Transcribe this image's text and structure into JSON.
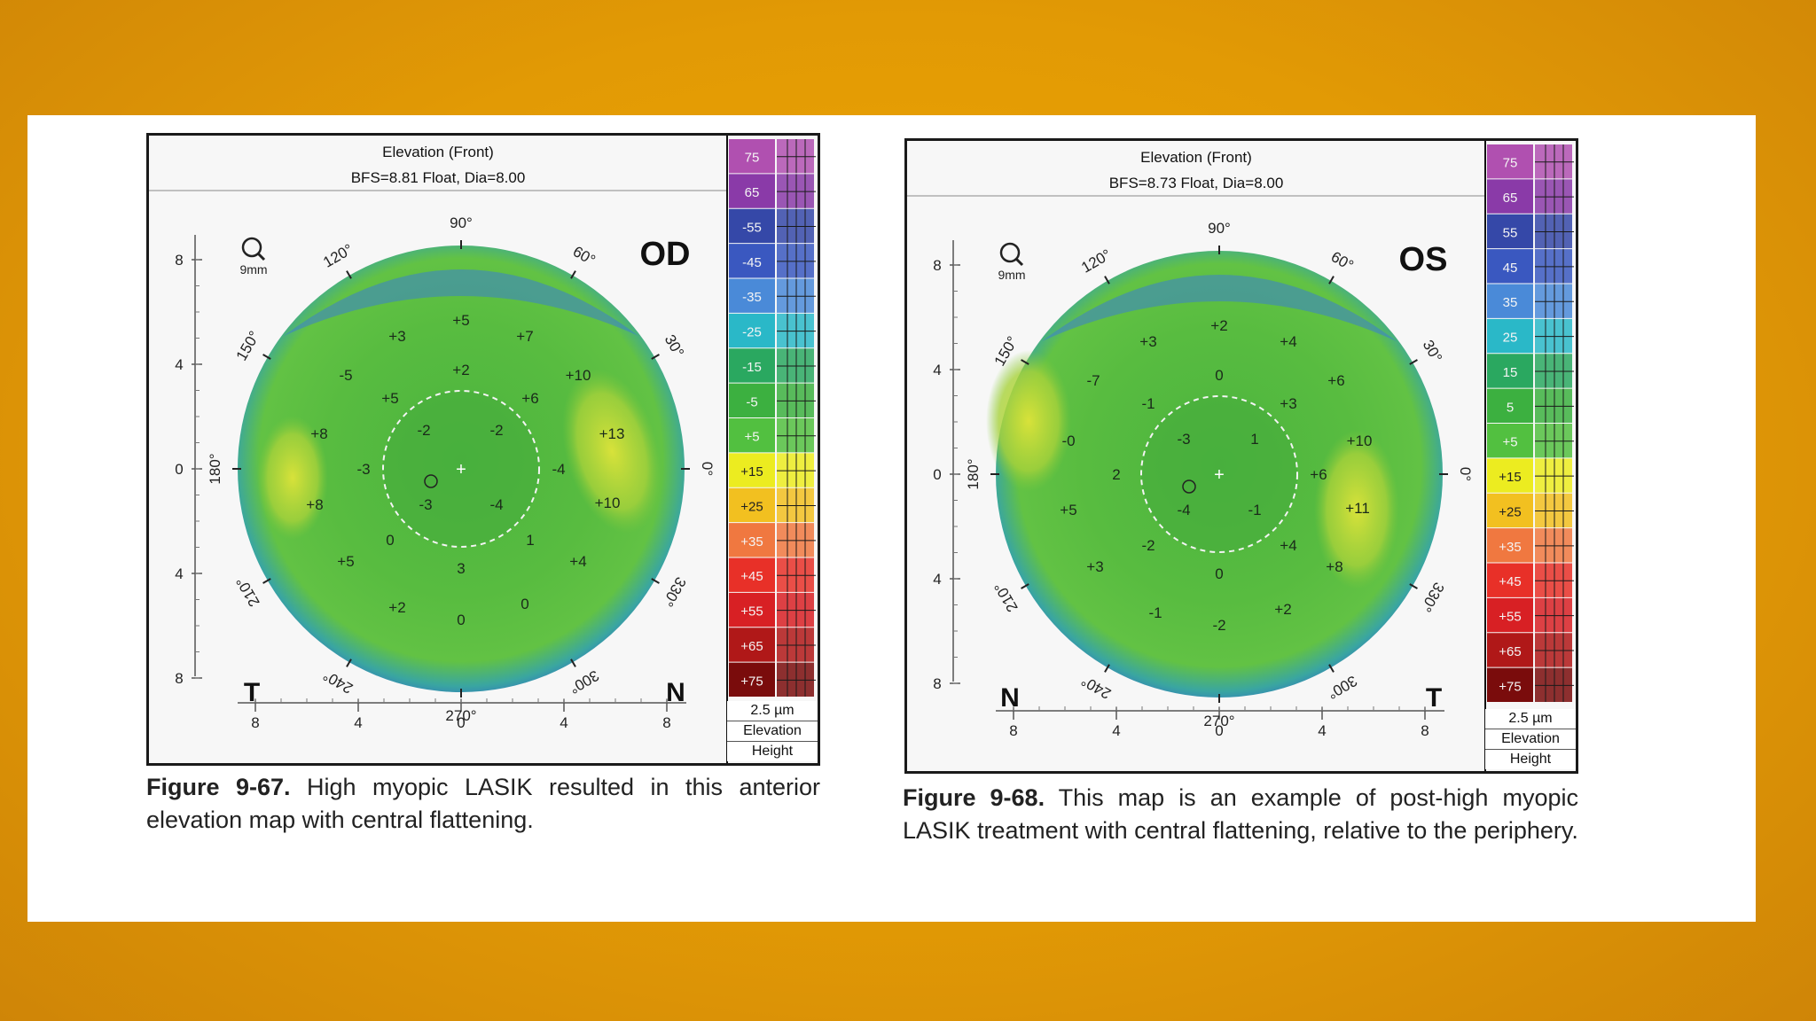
{
  "slide": {
    "background": "#e39c05",
    "panel": "#ffffff"
  },
  "figures": [
    {
      "map_title": "Elevation (Front)",
      "map_subtitle": "BFS=8.81 Float, Dia=8.00",
      "eye_label": "OD",
      "left_letter": "T",
      "right_letter": "N",
      "zoom_label": "9mm",
      "angles": [
        "90°",
        "120°",
        "60°",
        "150°",
        "30°",
        "180°",
        "0°",
        "210°",
        "330°",
        "240°",
        "300°",
        "270°"
      ],
      "y_axis_labels": [
        "8",
        "4",
        "0",
        "4",
        "8"
      ],
      "x_axis_labels": [
        "8",
        "4",
        "0",
        "4",
        "8"
      ],
      "scale_values": [
        "75",
        "65",
        "-55",
        "-45",
        "-35",
        "-25",
        "-15",
        "-5",
        "+5",
        "+15",
        "+25",
        "+35",
        "+45",
        "+55",
        "+65",
        "+75"
      ],
      "scale_units": "2.5 µm",
      "scale_footer_1": "Elevation",
      "scale_footer_2": "Height",
      "numbers": [
        "+3",
        "+5",
        "+7",
        "-5",
        "+2",
        "+10",
        "+5",
        "+6",
        "+8",
        "-2",
        "-2",
        "+13",
        "-3",
        "-4",
        "+8",
        "-3",
        "-4",
        "+10",
        "0",
        "1",
        "+5",
        "3",
        "+4",
        "+2",
        "0",
        "0"
      ],
      "caption_label": "Figure 9-67.",
      "caption_text": " High myopic LASIK resulted in this anterior elevation map with central flattening."
    },
    {
      "map_title": "Elevation (Front)",
      "map_subtitle": "BFS=8.73 Float, Dia=8.00",
      "eye_label": "OS",
      "left_letter": "N",
      "right_letter": "T",
      "zoom_label": "9mm",
      "angles": [
        "90°",
        "120°",
        "60°",
        "150°",
        "30°",
        "180°",
        "0°",
        "210°",
        "330°",
        "240°",
        "300°",
        "270°"
      ],
      "y_axis_labels": [
        "8",
        "4",
        "0",
        "4",
        "8"
      ],
      "x_axis_labels": [
        "8",
        "4",
        "0",
        "4",
        "8"
      ],
      "scale_values": [
        "75",
        "65",
        "55",
        "45",
        "35",
        "25",
        "15",
        "5",
        "+5",
        "+15",
        "+25",
        "+35",
        "+45",
        "+55",
        "+65",
        "+75"
      ],
      "scale_units": "2.5 µm",
      "scale_footer_1": "Elevation",
      "scale_footer_2": "Height",
      "numbers": [
        "+2",
        "+3",
        "+4",
        "-7",
        "0",
        "+6",
        "-1",
        "+3",
        "-0",
        "-3",
        "1",
        "+10",
        "2",
        "+6",
        "+5",
        "-4",
        "-1",
        "+11",
        "-2",
        "+4",
        "+3",
        "0",
        "+8",
        "-1",
        "-2",
        "+2"
      ],
      "caption_label": "Figure 9-68.",
      "caption_text": " This map is an example of post-high myopic LASIK treatment with central flattening, relative to the periphery."
    }
  ],
  "scale_colors": [
    "#b050b0",
    "#8a3aa8",
    "#3548a8",
    "#3a58c0",
    "#4a8ad8",
    "#2ab8c8",
    "#2aa860",
    "#3cb040",
    "#52c040",
    "#ecec20",
    "#f2c020",
    "#f07840",
    "#e83028",
    "#d82024",
    "#b01818",
    "#7a0c0c"
  ]
}
